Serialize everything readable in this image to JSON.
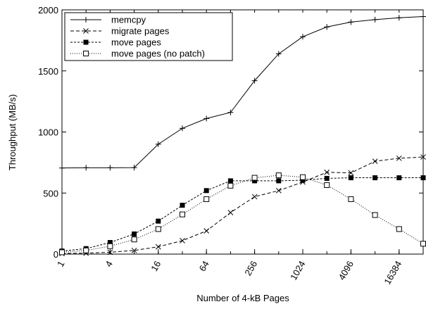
{
  "chart_data": {
    "type": "line",
    "title": "",
    "xlabel": "Number of 4-kB Pages",
    "ylabel": "Throughput (MB/s)",
    "x_scale": "log2",
    "xlim": [
      1,
      32768
    ],
    "ylim": [
      0,
      2000
    ],
    "x_ticks": [
      1,
      4,
      16,
      64,
      256,
      1024,
      4096,
      16384
    ],
    "x_tick_labels": [
      "1",
      "4",
      "16",
      "64",
      "256",
      "1024",
      "4096",
      "16384"
    ],
    "y_ticks": [
      0,
      500,
      1000,
      1500,
      2000
    ],
    "y_tick_labels": [
      "0",
      "500",
      "1000",
      "1500",
      "2000"
    ],
    "grid": false,
    "legend_position": "top-left",
    "x": [
      1,
      2,
      4,
      8,
      16,
      32,
      64,
      128,
      256,
      512,
      1024,
      2048,
      4096,
      8192,
      16384,
      32768
    ],
    "series": [
      {
        "name": "memcpy",
        "marker": "plus",
        "dash": "solid",
        "values": [
          705,
          707,
          707,
          708,
          900,
          1030,
          1110,
          1160,
          1420,
          1640,
          1780,
          1860,
          1900,
          1920,
          1935,
          1945
        ]
      },
      {
        "name": "migrate pages",
        "marker": "cross",
        "dash": "dashed",
        "values": [
          5,
          8,
          15,
          30,
          60,
          110,
          190,
          340,
          470,
          520,
          590,
          670,
          665,
          760,
          785,
          795
        ]
      },
      {
        "name": "move pages",
        "marker": "filled-square",
        "dash": "dotted",
        "values": [
          25,
          45,
          95,
          165,
          270,
          400,
          520,
          600,
          600,
          600,
          605,
          620,
          625,
          625,
          625,
          625
        ]
      },
      {
        "name": "move pages (no patch)",
        "marker": "open-square",
        "dash": "fine-dotted",
        "values": [
          15,
          30,
          65,
          120,
          205,
          325,
          450,
          560,
          625,
          645,
          630,
          565,
          450,
          320,
          205,
          85
        ]
      }
    ]
  }
}
